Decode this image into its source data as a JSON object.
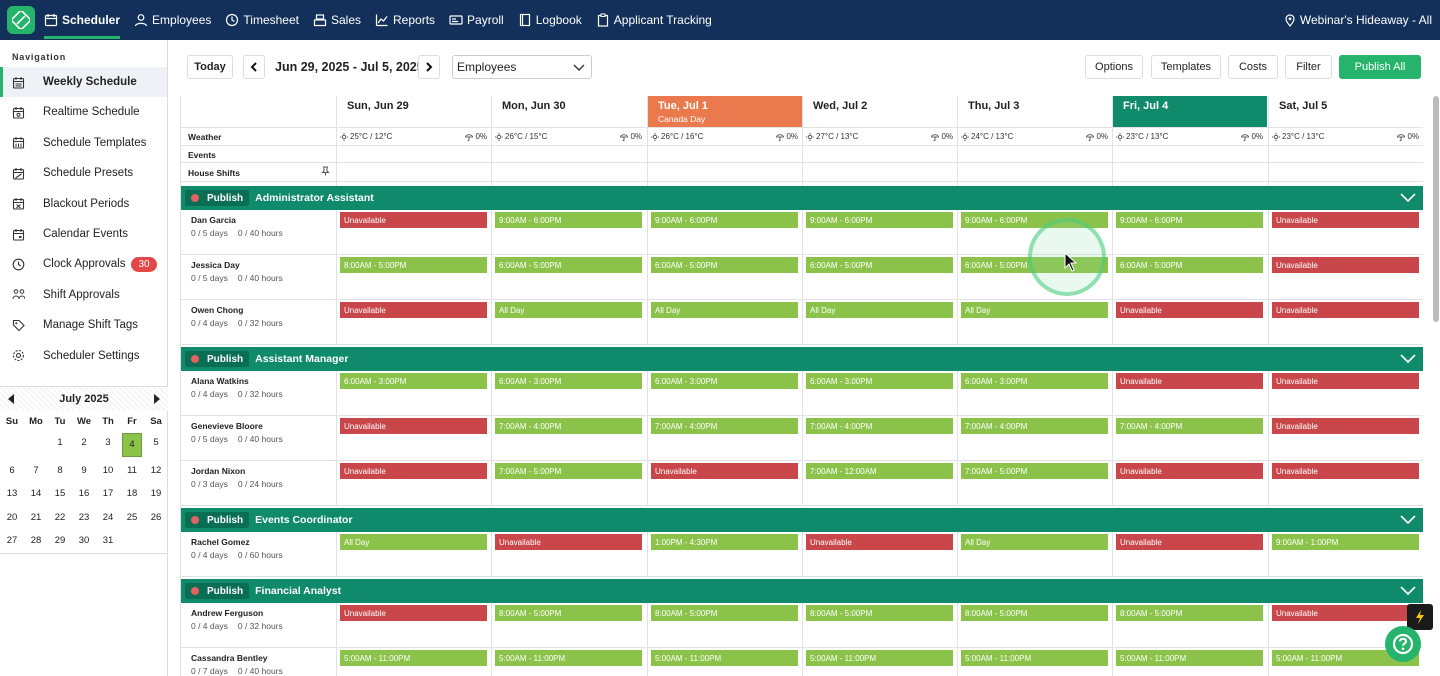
{
  "topnav": {
    "items": [
      {
        "label": "Scheduler",
        "icon": "calendar-icon",
        "active": true
      },
      {
        "label": "Employees",
        "icon": "person-icon"
      },
      {
        "label": "Timesheet",
        "icon": "clock-icon"
      },
      {
        "label": "Sales",
        "icon": "register-icon"
      },
      {
        "label": "Reports",
        "icon": "chart-icon"
      },
      {
        "label": "Payroll",
        "icon": "payroll-icon"
      },
      {
        "label": "Logbook",
        "icon": "book-icon"
      },
      {
        "label": "Applicant Tracking",
        "icon": "clipboard-icon"
      }
    ],
    "location": "Webinar's Hideaway - All"
  },
  "sidebar": {
    "title": "Navigation",
    "items": [
      {
        "label": "Weekly Schedule",
        "active": true
      },
      {
        "label": "Realtime Schedule"
      },
      {
        "label": "Schedule Templates"
      },
      {
        "label": "Schedule Presets"
      },
      {
        "label": "Blackout Periods"
      },
      {
        "label": "Calendar Events"
      },
      {
        "label": "Clock Approvals",
        "badge": "30"
      },
      {
        "label": "Shift Approvals"
      },
      {
        "label": "Manage Shift Tags"
      },
      {
        "label": "Scheduler Settings"
      }
    ]
  },
  "calendar": {
    "month": "July 2025",
    "dow": [
      "Su",
      "Mo",
      "Tu",
      "We",
      "Th",
      "Fr",
      "Sa"
    ],
    "weeks": [
      [
        "",
        "",
        "1",
        "2",
        "3",
        "4",
        "5"
      ],
      [
        "6",
        "7",
        "8",
        "9",
        "10",
        "11",
        "12"
      ],
      [
        "13",
        "14",
        "15",
        "16",
        "17",
        "18",
        "19"
      ],
      [
        "20",
        "21",
        "22",
        "23",
        "24",
        "25",
        "26"
      ],
      [
        "27",
        "28",
        "29",
        "30",
        "31",
        "",
        ""
      ]
    ],
    "selected": "4"
  },
  "toolbar": {
    "today": "Today",
    "range": "Jun 29, 2025 - Jul 5, 2025",
    "view": "Employees",
    "options": "Options",
    "templates": "Templates",
    "costs": "Costs",
    "filter": "Filter",
    "publish_all": "Publish All"
  },
  "days": [
    {
      "label": "Sun, Jun 29",
      "weather": "25°C / 12°C",
      "rain": "0%"
    },
    {
      "label": "Mon, Jun 30",
      "weather": "26°C / 15°C",
      "rain": "0%"
    },
    {
      "label": "Tue, Jul 1",
      "sub": "Canada Day",
      "weather": "26°C / 16°C",
      "rain": "0%",
      "color": "#ea7a4e"
    },
    {
      "label": "Wed, Jul 2",
      "weather": "27°C / 13°C",
      "rain": "0%"
    },
    {
      "label": "Thu, Jul 3",
      "weather": "24°C / 13°C",
      "rain": "0%"
    },
    {
      "label": "Fri, Jul 4",
      "weather": "23°C / 13°C",
      "rain": "0%",
      "color": "#0f8a6b"
    },
    {
      "label": "Sat, Jul 5",
      "weather": "23°C / 13°C",
      "rain": "0%"
    }
  ],
  "info_rows": {
    "weather": "Weather",
    "events": "Events",
    "house": "House Shifts"
  },
  "publish_label": "Publish",
  "groups": [
    {
      "title": "Administrator Assistant",
      "employees": [
        {
          "name": "Dan Garcia",
          "days": "0 / 5 days",
          "hours": "0 / 40 hours",
          "shifts": [
            [
              "Unavailable",
              "r"
            ],
            [
              "9:00AM - 6:00PM",
              "g"
            ],
            [
              "9:00AM - 6:00PM",
              "g"
            ],
            [
              "9:00AM - 6:00PM",
              "g"
            ],
            [
              "9:00AM - 6:00PM",
              "g"
            ],
            [
              "9:00AM - 6:00PM",
              "g"
            ],
            [
              "Unavailable",
              "r"
            ]
          ]
        },
        {
          "name": "Jessica Day",
          "days": "0 / 5 days",
          "hours": "0 / 40 hours",
          "shifts": [
            [
              "8:00AM - 5:00PM",
              "g"
            ],
            [
              "6:00AM - 5:00PM",
              "g"
            ],
            [
              "6:00AM - 5:00PM",
              "g"
            ],
            [
              "6:00AM - 5:00PM",
              "g"
            ],
            [
              "6:00AM - 5:00PM",
              "g"
            ],
            [
              "6:00AM - 5:00PM",
              "g"
            ],
            [
              "Unavailable",
              "r"
            ]
          ]
        },
        {
          "name": "Owen Chong",
          "days": "0 / 4 days",
          "hours": "0 / 32 hours",
          "shifts": [
            [
              "Unavailable",
              "r"
            ],
            [
              "All Day",
              "g"
            ],
            [
              "All Day",
              "g"
            ],
            [
              "All Day",
              "g"
            ],
            [
              "All Day",
              "g"
            ],
            [
              "Unavailable",
              "r"
            ],
            [
              "Unavailable",
              "r"
            ]
          ]
        }
      ]
    },
    {
      "title": "Assistant Manager",
      "employees": [
        {
          "name": "Alana Watkins",
          "days": "0 / 4 days",
          "hours": "0 / 32 hours",
          "shifts": [
            [
              "6:00AM - 3:00PM",
              "g"
            ],
            [
              "6:00AM - 3:00PM",
              "g"
            ],
            [
              "6:00AM - 3:00PM",
              "g"
            ],
            [
              "6:00AM - 3:00PM",
              "g"
            ],
            [
              "6:00AM - 3:00PM",
              "g"
            ],
            [
              "Unavailable",
              "r"
            ],
            [
              "Unavailable",
              "r"
            ]
          ]
        },
        {
          "name": "Genevieve Bloore",
          "days": "0 / 5 days",
          "hours": "0 / 40 hours",
          "shifts": [
            [
              "Unavailable",
              "r"
            ],
            [
              "7:00AM - 4:00PM",
              "g"
            ],
            [
              "7:00AM - 4:00PM",
              "g"
            ],
            [
              "7:00AM - 4:00PM",
              "g"
            ],
            [
              "7:00AM - 4:00PM",
              "g"
            ],
            [
              "7:00AM - 4:00PM",
              "g"
            ],
            [
              "Unavailable",
              "r"
            ]
          ]
        },
        {
          "name": "Jordan Nixon",
          "days": "0 / 3 days",
          "hours": "0 / 24 hours",
          "shifts": [
            [
              "Unavailable",
              "r"
            ],
            [
              "7:00AM - 5:00PM",
              "g"
            ],
            [
              "Unavailable",
              "r"
            ],
            [
              "7:00AM - 12:00AM",
              "g"
            ],
            [
              "7:00AM - 5:00PM",
              "g"
            ],
            [
              "Unavailable",
              "r"
            ],
            [
              "Unavailable",
              "r"
            ]
          ]
        }
      ]
    },
    {
      "title": "Events Coordinator",
      "employees": [
        {
          "name": "Rachel Gomez",
          "days": "0 / 4 days",
          "hours": "0 / 60 hours",
          "shifts": [
            [
              "All Day",
              "g"
            ],
            [
              "Unavailable",
              "r"
            ],
            [
              "1:00PM - 4:30PM",
              "g"
            ],
            [
              "Unavailable",
              "r"
            ],
            [
              "All Day",
              "g"
            ],
            [
              "Unavailable",
              "r"
            ],
            [
              "9:00AM - 1:00PM",
              "g"
            ]
          ]
        }
      ]
    },
    {
      "title": "Financial Analyst",
      "employees": [
        {
          "name": "Andrew Ferguson",
          "days": "0 / 4 days",
          "hours": "0 / 32 hours",
          "shifts": [
            [
              "Unavailable",
              "r"
            ],
            [
              "8:00AM - 5:00PM",
              "g"
            ],
            [
              "8:00AM - 5:00PM",
              "g"
            ],
            [
              "8:00AM - 5:00PM",
              "g"
            ],
            [
              "8:00AM - 5:00PM",
              "g"
            ],
            [
              "8:00AM - 5:00PM",
              "g"
            ],
            [
              "Unavailable",
              "r"
            ]
          ]
        },
        {
          "name": "Cassandra Bentley",
          "days": "0 / 7 days",
          "hours": "0 / 40 hours",
          "shifts": [
            [
              "5:00AM - 11:00PM",
              "g"
            ],
            [
              "5:00AM - 11:00PM",
              "g"
            ],
            [
              "5:00AM - 11:00PM",
              "g"
            ],
            [
              "5:00AM - 11:00PM",
              "g"
            ],
            [
              "5:00AM - 11:00PM",
              "g"
            ],
            [
              "5:00AM - 11:00PM",
              "g"
            ],
            [
              "5:00AM - 11:00PM",
              "g"
            ]
          ]
        }
      ]
    }
  ]
}
